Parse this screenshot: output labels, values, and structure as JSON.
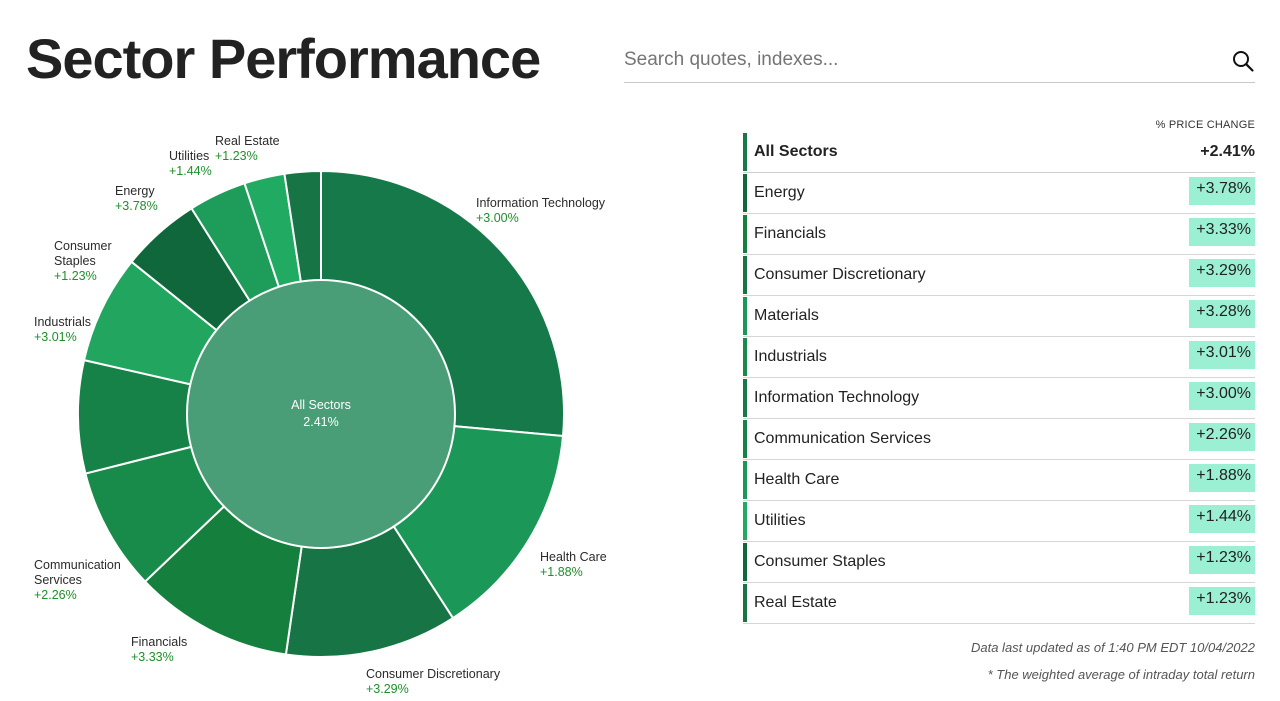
{
  "header": {
    "title": "Sector Performance",
    "search_placeholder": "Search quotes, indexes..."
  },
  "table": {
    "column_header": "% PRICE CHANGE",
    "total": {
      "label": "All Sectors",
      "value": "+2.41%"
    },
    "rows": [
      {
        "label": "Energy",
        "value": "+3.78%"
      },
      {
        "label": "Financials",
        "value": "+3.33%"
      },
      {
        "label": "Consumer Discretionary",
        "value": "+3.29%"
      },
      {
        "label": "Materials",
        "value": "+3.28%"
      },
      {
        "label": "Industrials",
        "value": "+3.01%"
      },
      {
        "label": "Information Technology",
        "value": "+3.00%"
      },
      {
        "label": "Communication Services",
        "value": "+2.26%"
      },
      {
        "label": "Health Care",
        "value": "+1.88%"
      },
      {
        "label": "Utilities",
        "value": "+1.44%"
      },
      {
        "label": "Consumer Staples",
        "value": "+1.23%"
      },
      {
        "label": "Real Estate",
        "value": "+1.23%"
      }
    ],
    "footnote_updated": "Data last updated as of 1:40 PM EDT 10/04/2022",
    "footnote_method": "* The weighted average of intraday total return"
  },
  "chart_data": {
    "type": "pie",
    "center": {
      "label": "All Sectors",
      "value": "2.41%"
    },
    "slices": [
      {
        "name": "Information Technology",
        "label": "+3.00%",
        "share": 27.5,
        "color": "#16794a"
      },
      {
        "name": "Health Care",
        "label": "+1.88%",
        "share": 15.0,
        "color": "#1b9857"
      },
      {
        "name": "Consumer Discretionary",
        "label": "+3.29%",
        "share": 11.9,
        "color": "#167445"
      },
      {
        "name": "Financials",
        "label": "+3.33%",
        "share": 11.0,
        "color": "#15803d"
      },
      {
        "name": "Communication Services",
        "label": "+2.26%",
        "share": 8.5,
        "color": "#188a4a"
      },
      {
        "name": "",
        "label": "",
        "share": 7.8,
        "color": "#178247"
      },
      {
        "name": "Industrials",
        "label": "+3.01%",
        "share": 7.5,
        "color": "#22a65f"
      },
      {
        "name": "Consumer Staples",
        "label": "+1.23%",
        "share": 5.5,
        "color": "#11673c"
      },
      {
        "name": "Energy",
        "label": "+3.78%",
        "share": 4.0,
        "color": "#1e9c5a"
      },
      {
        "name": "Utilities",
        "label": "+1.44%",
        "share": 2.8,
        "color": "#21ab62"
      },
      {
        "name": "Real Estate",
        "label": "+1.23%",
        "share": 2.5,
        "color": "#167445"
      }
    ],
    "center_color": "#4a9e77"
  }
}
